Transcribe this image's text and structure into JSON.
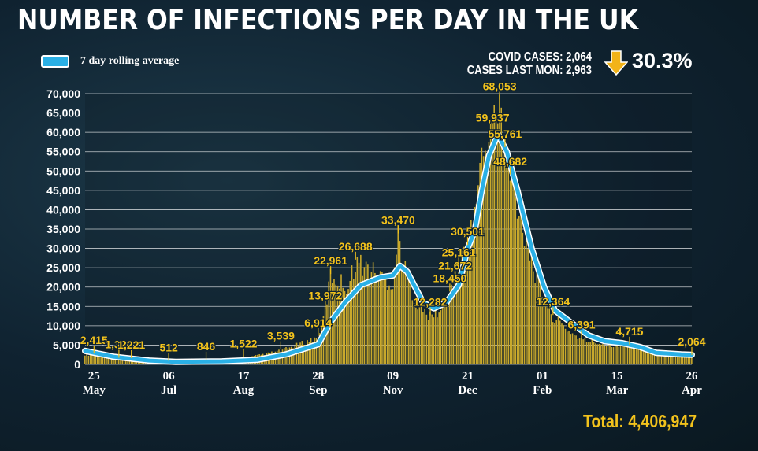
{
  "header": {
    "title": "NUMBER OF INFECTIONS PER DAY IN THE UK",
    "legend_label": "7 day rolling average",
    "covid_cases": "COVID CASES: 2,064",
    "cases_last_mon": "CASES LAST MON: 2,963",
    "change_pct": "30.3%",
    "total": "Total: 4,406,947"
  },
  "colors": {
    "bars": "#c9a92c",
    "avg_line": "#2ab0e6",
    "label_text": "#f2c21c",
    "arrow": "#f2b318"
  },
  "chart_data": {
    "type": "bar",
    "title": "NUMBER OF INFECTIONS PER DAY IN THE UK",
    "x_start": "2020-05-20",
    "x_end": "2021-04-26",
    "ylim": [
      0,
      70000
    ],
    "y_ticks": [
      "0",
      "5,000",
      "10,000",
      "15,000",
      "20,000",
      "25,000",
      "30,000",
      "35,000",
      "40,000",
      "45,000",
      "50,000",
      "55,000",
      "60,000",
      "65,000",
      "70,000"
    ],
    "x_ticks": [
      {
        "date": "2020-05-25",
        "day": "25",
        "month": "May"
      },
      {
        "date": "2020-07-06",
        "day": "06",
        "month": "Jul"
      },
      {
        "date": "2020-08-17",
        "day": "17",
        "month": "Aug"
      },
      {
        "date": "2020-09-28",
        "day": "28",
        "month": "Sep"
      },
      {
        "date": "2020-11-09",
        "day": "09",
        "month": "Nov"
      },
      {
        "date": "2020-12-21",
        "day": "21",
        "month": "Dec"
      },
      {
        "date": "2021-02-01",
        "day": "01",
        "month": "Feb"
      },
      {
        "date": "2021-03-15",
        "day": "15",
        "month": "Mar"
      },
      {
        "date": "2021-04-26",
        "day": "26",
        "month": "Apr"
      }
    ],
    "daily_cases_key_points": [
      {
        "date": "2020-05-20",
        "value": 2600
      },
      {
        "date": "2020-05-25",
        "value": 2415
      },
      {
        "date": "2020-06-08",
        "value": 1326
      },
      {
        "date": "2020-06-15",
        "value": 1221
      },
      {
        "date": "2020-07-06",
        "value": 512
      },
      {
        "date": "2020-07-27",
        "value": 846
      },
      {
        "date": "2020-08-17",
        "value": 1522
      },
      {
        "date": "2020-09-07",
        "value": 3539
      },
      {
        "date": "2020-09-28",
        "value": 6914
      },
      {
        "date": "2020-10-02",
        "value": 13972
      },
      {
        "date": "2020-10-05",
        "value": 22961
      },
      {
        "date": "2020-10-15",
        "value": 20000
      },
      {
        "date": "2020-10-19",
        "value": 26688
      },
      {
        "date": "2020-11-09",
        "value": 21000
      },
      {
        "date": "2020-11-12",
        "value": 33470
      },
      {
        "date": "2020-11-16",
        "value": 24000
      },
      {
        "date": "2020-11-23",
        "value": 15000
      },
      {
        "date": "2020-11-30",
        "value": 12282
      },
      {
        "date": "2020-12-07",
        "value": 14000
      },
      {
        "date": "2020-12-11",
        "value": 18450
      },
      {
        "date": "2020-12-14",
        "value": 21672
      },
      {
        "date": "2020-12-16",
        "value": 25161
      },
      {
        "date": "2020-12-21",
        "value": 30501
      },
      {
        "date": "2020-12-24",
        "value": 36000
      },
      {
        "date": "2020-12-29",
        "value": 53000
      },
      {
        "date": "2021-01-04",
        "value": 59937
      },
      {
        "date": "2021-01-08",
        "value": 68053
      },
      {
        "date": "2021-01-11",
        "value": 55761
      },
      {
        "date": "2021-01-14",
        "value": 48682
      },
      {
        "date": "2021-01-20",
        "value": 38000
      },
      {
        "date": "2021-01-27",
        "value": 25000
      },
      {
        "date": "2021-02-01",
        "value": 18000
      },
      {
        "date": "2021-02-07",
        "value": 12364
      },
      {
        "date": "2021-02-15",
        "value": 9000
      },
      {
        "date": "2021-02-23",
        "value": 6391
      },
      {
        "date": "2021-03-08",
        "value": 5200
      },
      {
        "date": "2021-03-22",
        "value": 4715
      },
      {
        "date": "2021-04-05",
        "value": 2800
      },
      {
        "date": "2021-04-26",
        "value": 2064
      }
    ],
    "rolling_average_key_points": [
      {
        "date": "2020-05-20",
        "value": 3500
      },
      {
        "date": "2020-06-05",
        "value": 2000
      },
      {
        "date": "2020-06-25",
        "value": 1000
      },
      {
        "date": "2020-07-10",
        "value": 650
      },
      {
        "date": "2020-08-05",
        "value": 800
      },
      {
        "date": "2020-08-25",
        "value": 1200
      },
      {
        "date": "2020-09-10",
        "value": 2600
      },
      {
        "date": "2020-09-28",
        "value": 5200
      },
      {
        "date": "2020-10-05",
        "value": 11000
      },
      {
        "date": "2020-10-13",
        "value": 16000
      },
      {
        "date": "2020-10-22",
        "value": 20500
      },
      {
        "date": "2020-11-02",
        "value": 22500
      },
      {
        "date": "2020-11-09",
        "value": 23000
      },
      {
        "date": "2020-11-13",
        "value": 25500
      },
      {
        "date": "2020-11-17",
        "value": 24000
      },
      {
        "date": "2020-11-26",
        "value": 16000
      },
      {
        "date": "2020-12-02",
        "value": 14500
      },
      {
        "date": "2020-12-09",
        "value": 16000
      },
      {
        "date": "2020-12-16",
        "value": 20500
      },
      {
        "date": "2020-12-21",
        "value": 30000
      },
      {
        "date": "2020-12-25",
        "value": 34500
      },
      {
        "date": "2020-12-29",
        "value": 45000
      },
      {
        "date": "2021-01-02",
        "value": 54000
      },
      {
        "date": "2021-01-07",
        "value": 59500
      },
      {
        "date": "2021-01-12",
        "value": 55000
      },
      {
        "date": "2021-01-18",
        "value": 45000
      },
      {
        "date": "2021-01-26",
        "value": 30000
      },
      {
        "date": "2021-02-02",
        "value": 20000
      },
      {
        "date": "2021-02-08",
        "value": 14000
      },
      {
        "date": "2021-02-18",
        "value": 10500
      },
      {
        "date": "2021-02-27",
        "value": 7500
      },
      {
        "date": "2021-03-08",
        "value": 6000
      },
      {
        "date": "2021-03-18",
        "value": 5500
      },
      {
        "date": "2021-03-28",
        "value": 4500
      },
      {
        "date": "2021-04-06",
        "value": 3000
      },
      {
        "date": "2021-04-20",
        "value": 2600
      },
      {
        "date": "2021-04-26",
        "value": 2500
      }
    ],
    "annotations": [
      {
        "date": "2020-05-25",
        "value": 2415,
        "text": "2,415"
      },
      {
        "date": "2020-06-08",
        "value": 1326,
        "text": "1,326"
      },
      {
        "date": "2020-06-15",
        "value": 1221,
        "text": "1,221"
      },
      {
        "date": "2020-07-06",
        "value": 512,
        "text": "512"
      },
      {
        "date": "2020-07-27",
        "value": 846,
        "text": "846"
      },
      {
        "date": "2020-08-17",
        "value": 1522,
        "text": "1,522"
      },
      {
        "date": "2020-09-07",
        "value": 3539,
        "text": "3,539"
      },
      {
        "date": "2020-09-28",
        "value": 6914,
        "text": "6,914"
      },
      {
        "date": "2020-10-02",
        "value": 13972,
        "text": "13,972"
      },
      {
        "date": "2020-10-05",
        "value": 22961,
        "text": "22,961"
      },
      {
        "date": "2020-10-19",
        "value": 26688,
        "text": "26,688"
      },
      {
        "date": "2020-11-12",
        "value": 33470,
        "text": "33,470"
      },
      {
        "date": "2020-11-30",
        "value": 12282,
        "text": "12,282"
      },
      {
        "date": "2020-12-11",
        "value": 18450,
        "text": "18,450"
      },
      {
        "date": "2020-12-14",
        "value": 21672,
        "text": "21,672"
      },
      {
        "date": "2020-12-16",
        "value": 25161,
        "text": "25,161"
      },
      {
        "date": "2020-12-21",
        "value": 30501,
        "text": "30,501"
      },
      {
        "date": "2021-01-08",
        "value": 68053,
        "text": "68,053"
      },
      {
        "date": "2021-01-04",
        "value": 59937,
        "text": "59,937"
      },
      {
        "date": "2021-01-11",
        "value": 55761,
        "text": "55,761"
      },
      {
        "date": "2021-01-14",
        "value": 48682,
        "text": "48,682"
      },
      {
        "date": "2021-02-07",
        "value": 12364,
        "text": "12,364"
      },
      {
        "date": "2021-02-23",
        "value": 6391,
        "text": "6,391"
      },
      {
        "date": "2021-03-22",
        "value": 4715,
        "text": "4,715"
      },
      {
        "date": "2021-04-26",
        "value": 2064,
        "text": "2,064"
      }
    ],
    "grid": true,
    "legend": "top-left"
  }
}
